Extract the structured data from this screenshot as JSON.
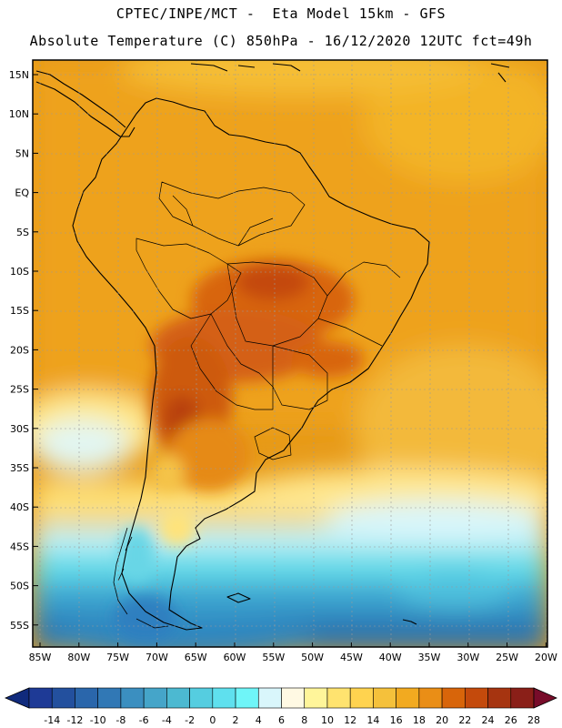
{
  "header": {
    "line1": "CPTEC/INPE/MCT -  Eta Model 15km - GFS",
    "line2": "Absolute Temperature (C) 850hPa - 16/12/2020 12UTC fct=49h"
  },
  "map": {
    "lat_labels": [
      "15N",
      "10N",
      "5N",
      "EQ",
      "5S",
      "10S",
      "15S",
      "20S",
      "25S",
      "30S",
      "35S",
      "40S",
      "45S",
      "50S",
      "55S"
    ],
    "lon_labels": [
      "85W",
      "80W",
      "75W",
      "70W",
      "65W",
      "60W",
      "55W",
      "50W",
      "45W",
      "40W",
      "35W",
      "30W",
      "25W",
      "20W"
    ],
    "lat_range": [
      16,
      -58
    ],
    "lon_range": [
      -86,
      -20
    ]
  },
  "colorbar": {
    "labels": [
      "-14",
      "-12",
      "-10",
      "-8",
      "-6",
      "-4",
      "-2",
      "0",
      "2",
      "4",
      "6",
      "8",
      "10",
      "12",
      "14",
      "16",
      "18",
      "20",
      "22",
      "24",
      "26",
      "28"
    ],
    "colors": [
      "#1e3a96",
      "#23509e",
      "#2a66ab",
      "#3178b5",
      "#3b8fc0",
      "#45a5c9",
      "#4cb9d1",
      "#55cde0",
      "#5fe0ee",
      "#6ff5f8",
      "#d9f6fb",
      "#fff9e3",
      "#fff59a",
      "#ffe36f",
      "#ffd34f",
      "#f5c13b",
      "#f2aa20",
      "#ea8e16",
      "#d8650a",
      "#c44a0c",
      "#a63410",
      "#8a1f18"
    ],
    "low_arrow_color": "#102a7c",
    "high_arrow_color": "#780c2a"
  }
}
